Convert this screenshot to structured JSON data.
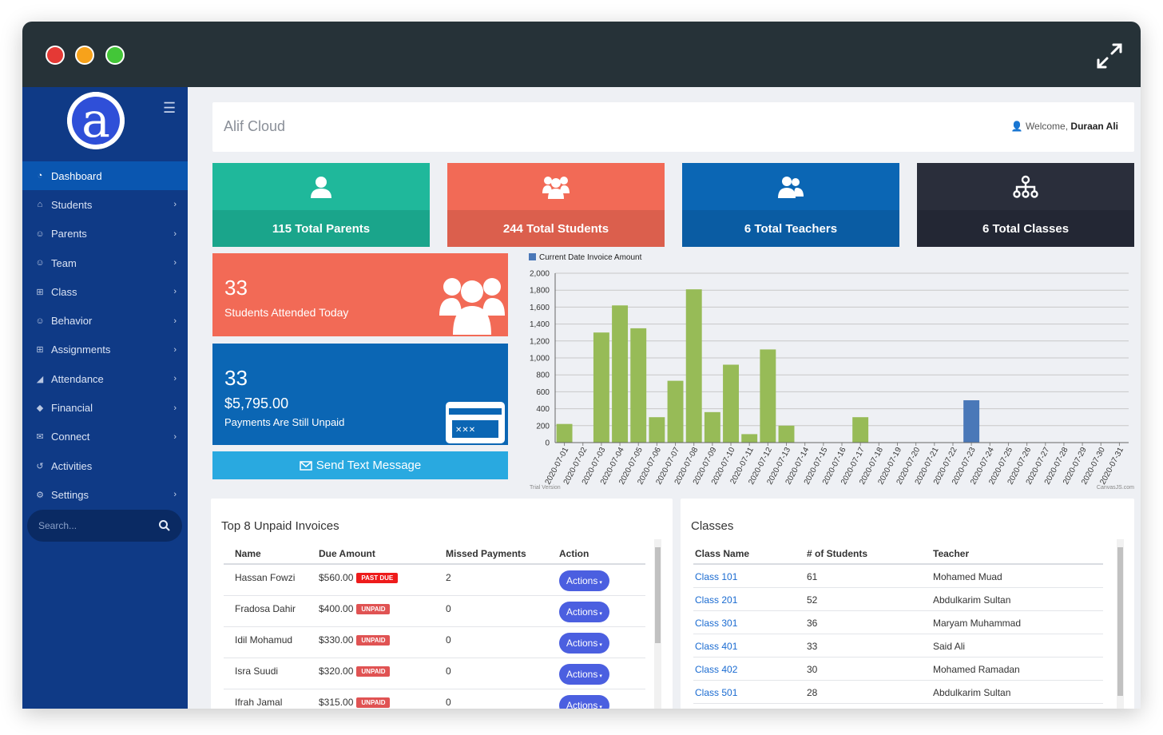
{
  "app": {
    "brand": "Alif Cloud",
    "welcome_prefix": "Welcome,",
    "user": "Duraan Ali",
    "logo_letter": "a"
  },
  "sidebar": {
    "items": [
      {
        "label": "Dashboard",
        "icon": "dashboard-icon",
        "active": true,
        "chevron": false
      },
      {
        "label": "Students",
        "icon": "graduation-cap-icon",
        "active": false,
        "chevron": true
      },
      {
        "label": "Parents",
        "icon": "users-icon",
        "active": false,
        "chevron": true
      },
      {
        "label": "Team",
        "icon": "users-icon",
        "active": false,
        "chevron": true
      },
      {
        "label": "Class",
        "icon": "table-icon",
        "active": false,
        "chevron": true
      },
      {
        "label": "Behavior",
        "icon": "users-icon",
        "active": false,
        "chevron": true
      },
      {
        "label": "Assignments",
        "icon": "table-icon",
        "active": false,
        "chevron": true
      },
      {
        "label": "Attendance",
        "icon": "area-chart-icon",
        "active": false,
        "chevron": true
      },
      {
        "label": "Financial",
        "icon": "tag-icon",
        "active": false,
        "chevron": true
      },
      {
        "label": "Connect",
        "icon": "envelope-icon",
        "active": false,
        "chevron": true
      },
      {
        "label": "Activities",
        "icon": "history-icon",
        "active": false,
        "chevron": false
      },
      {
        "label": "Settings",
        "icon": "gear-icon",
        "active": false,
        "chevron": true
      }
    ],
    "search_placeholder": "Search..."
  },
  "stats": [
    {
      "label": "115 Total Parents",
      "icon": "user-icon",
      "color": "#1fb89b"
    },
    {
      "label": "244 Total Students",
      "icon": "users-icon",
      "color": "#f26a56"
    },
    {
      "label": "6 Total Teachers",
      "icon": "user-pair-icon",
      "color": "#0b66b4"
    },
    {
      "label": "6 Total Classes",
      "icon": "sitemap-icon",
      "color": "#2a2e3b"
    }
  ],
  "attendance": {
    "count": "33",
    "label": "Students Attended Today"
  },
  "payments": {
    "count": "33",
    "amount": "$5,795.00",
    "label": "Payments Are Still Unpaid"
  },
  "send_button": "Send Text Message",
  "chart_data": {
    "type": "bar",
    "legend": "Current Date Invoice Amount",
    "ylim": [
      0,
      2000
    ],
    "yticks": [
      0,
      200,
      400,
      600,
      800,
      1000,
      1200,
      1400,
      1600,
      1800,
      2000
    ],
    "ytick_labels": [
      "0",
      "200",
      "400",
      "600",
      "800",
      "1,000",
      "1,200",
      "1,400",
      "1,600",
      "1,800",
      "2,000"
    ],
    "categories": [
      "2020-07-01",
      "2020-07-02",
      "2020-07-03",
      "2020-07-04",
      "2020-07-05",
      "2020-07-06",
      "2020-07-07",
      "2020-07-08",
      "2020-07-09",
      "2020-07-10",
      "2020-07-11",
      "2020-07-12",
      "2020-07-13",
      "2020-07-14",
      "2020-07-15",
      "2020-07-16",
      "2020-07-17",
      "2020-07-18",
      "2020-07-19",
      "2020-07-20",
      "2020-07-21",
      "2020-07-22",
      "2020-07-23",
      "2020-07-24",
      "2020-07-25",
      "2020-07-26",
      "2020-07-27",
      "2020-07-28",
      "2020-07-29",
      "2020-07-30",
      "2020-07-31"
    ],
    "values": [
      220,
      0,
      1300,
      1620,
      1350,
      300,
      730,
      1810,
      360,
      920,
      100,
      1100,
      200,
      0,
      0,
      0,
      300,
      0,
      0,
      0,
      0,
      0,
      500,
      0,
      0,
      0,
      0,
      0,
      0,
      0,
      0
    ],
    "highlight_index": 22,
    "colors": {
      "bar": "#97bb57",
      "highlight": "#4a78b8",
      "legend": "#4a78b8"
    },
    "watermark_left": "Trial Version",
    "watermark_right": "CanvasJS.com",
    "grid": true
  },
  "invoices": {
    "title": "Top 8 Unpaid Invoices",
    "headers": [
      "Name",
      "Due Amount",
      "Missed Payments",
      "Action"
    ],
    "rows": [
      {
        "name": "Hassan Fowzi",
        "amount": "$560.00",
        "status": "PAST DUE",
        "missed": "2",
        "action": "Actions"
      },
      {
        "name": "Fradosa Dahir",
        "amount": "$400.00",
        "status": "UNPAID",
        "missed": "0",
        "action": "Actions"
      },
      {
        "name": "Idil Mohamud",
        "amount": "$330.00",
        "status": "UNPAID",
        "missed": "0",
        "action": "Actions"
      },
      {
        "name": "Isra Suudi",
        "amount": "$320.00",
        "status": "UNPAID",
        "missed": "0",
        "action": "Actions"
      },
      {
        "name": "Ifrah Jamal",
        "amount": "$315.00",
        "status": "UNPAID",
        "missed": "0",
        "action": "Actions"
      }
    ]
  },
  "classes": {
    "title": "Classes",
    "headers": [
      "Class Name",
      "# of Students",
      "Teacher"
    ],
    "rows": [
      {
        "name": "Class 101",
        "students": "61",
        "teacher": "Mohamed Muad"
      },
      {
        "name": "Class 201",
        "students": "52",
        "teacher": "Abdulkarim Sultan"
      },
      {
        "name": "Class 301",
        "students": "36",
        "teacher": "Maryam Muhammad"
      },
      {
        "name": "Class 401",
        "students": "33",
        "teacher": "Said Ali"
      },
      {
        "name": "Class 402",
        "students": "30",
        "teacher": "Mohamed Ramadan"
      },
      {
        "name": "Class 501",
        "students": "28",
        "teacher": "Abdulkarim Sultan"
      }
    ]
  }
}
